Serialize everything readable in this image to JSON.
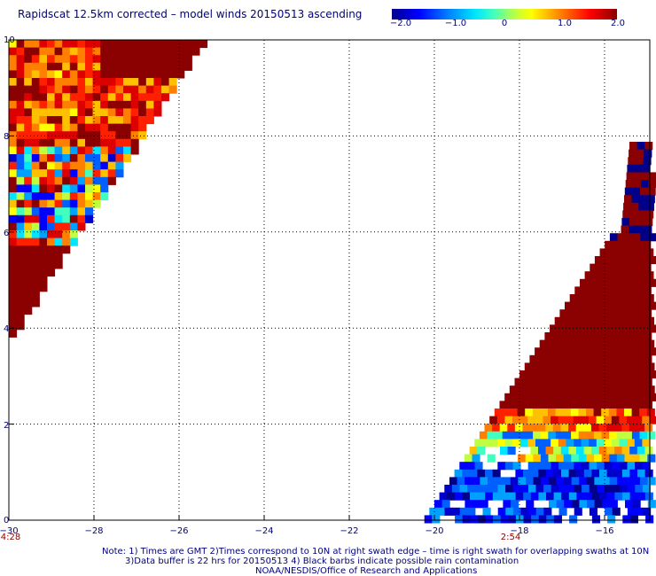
{
  "title": "Rapidscat 12.5km corrected – model winds 20150513 ascending",
  "colorbar": {
    "ticks": [
      "−2.0",
      "−1.0",
      "0",
      "1.0",
      "2.0"
    ],
    "min": -2.0,
    "max": 2.0,
    "colors": [
      "#00008b",
      "#0000ff",
      "#0080ff",
      "#00e5ff",
      "#bfff40",
      "#ffff00",
      "#ff8000",
      "#ff0000",
      "#8b0000"
    ]
  },
  "axes": {
    "x_ticks": [
      "−30",
      "−28",
      "−26",
      "−24",
      "−22",
      "−20",
      "−18",
      "−16"
    ],
    "y_ticks": [
      "0",
      "2",
      "4",
      "6",
      "8",
      "10"
    ],
    "x_range": [
      -30,
      -15
    ],
    "y_range": [
      0,
      10
    ]
  },
  "swath_times": [
    "4:28",
    "2:54"
  ],
  "notes": [
    "Note: 1) Times are GMT 2)Times correspond to 10N at right swath edge – time is right swath for overlapping swaths at 10N",
    "3)Data buffer is 22 hrs for 20150513 4) Black barbs indicate possible rain contamination",
    "NOAA/NESDIS/Office of Research and Applications"
  ]
}
